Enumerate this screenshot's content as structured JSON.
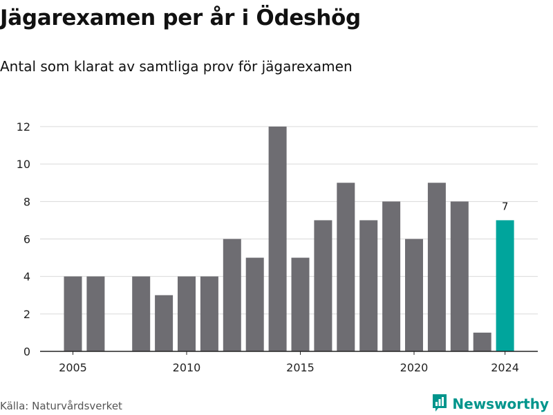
{
  "header": {
    "title": "Jägarexamen per år i Ödeshög",
    "subtitle": "Antal som klarat av samtliga prov för jägarexamen"
  },
  "footer": {
    "source": "Källa: Naturvårdsverket",
    "brand": "Newsworthy",
    "brand_icon": "bar-chart-logo-icon"
  },
  "colors": {
    "bar": "#6e6d72",
    "highlight": "#00a59c",
    "grid": "#d9d9d9",
    "brand": "#00958c"
  },
  "chart_data": {
    "type": "bar",
    "x": [
      2005,
      2006,
      2007,
      2008,
      2009,
      2010,
      2011,
      2012,
      2013,
      2014,
      2015,
      2016,
      2017,
      2018,
      2019,
      2020,
      2021,
      2022,
      2023,
      2024
    ],
    "values": [
      4,
      4,
      null,
      4,
      3,
      4,
      4,
      6,
      5,
      12,
      5,
      7,
      9,
      7,
      8,
      6,
      9,
      8,
      1,
      7
    ],
    "highlight": {
      "x": 2024,
      "label": "7"
    },
    "x_ticks": [
      2005,
      2010,
      2015,
      2020,
      2024
    ],
    "y_ticks": [
      0,
      2,
      4,
      6,
      8,
      10,
      12
    ],
    "ylim": [
      0,
      12
    ],
    "xlabel": "",
    "ylabel": "",
    "grid": true,
    "legend": "none"
  }
}
